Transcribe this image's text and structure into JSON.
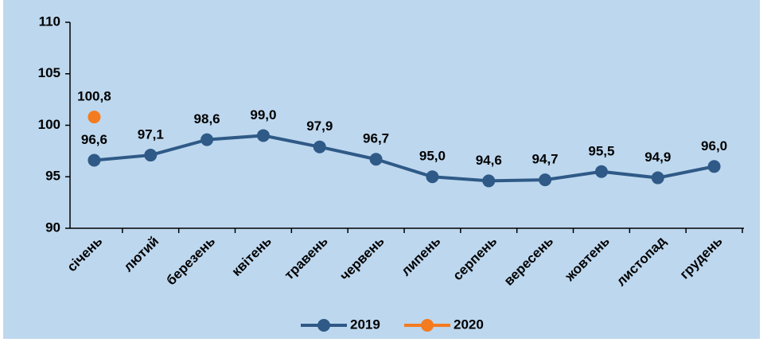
{
  "chart_data": {
    "type": "line",
    "categories": [
      "січень",
      "лютий",
      "березень",
      "квітень",
      "травень",
      "червень",
      "липень",
      "серпень",
      "вересень",
      "жовтень",
      "листопад",
      "грудень"
    ],
    "series": [
      {
        "name": "2019",
        "color": "#2f5a87",
        "values": [
          96.6,
          97.1,
          98.6,
          99.0,
          97.9,
          96.7,
          95.0,
          94.6,
          94.7,
          95.5,
          94.9,
          96.0
        ],
        "value_labels": [
          "96,6",
          "97,1",
          "98,6",
          "99,0",
          "97,9",
          "96,7",
          "95,0",
          "94,6",
          "94,7",
          "95,5",
          "94,9",
          "96,0"
        ]
      },
      {
        "name": "2020",
        "color": "#f47b20",
        "values": [
          100.8,
          null,
          null,
          null,
          null,
          null,
          null,
          null,
          null,
          null,
          null,
          null
        ],
        "value_labels": [
          "100,8",
          null,
          null,
          null,
          null,
          null,
          null,
          null,
          null,
          null,
          null,
          null
        ]
      }
    ],
    "ylim": [
      90,
      110
    ],
    "yticks": [
      90,
      95,
      100,
      105,
      110
    ],
    "grid": false,
    "legend": "bottom"
  }
}
